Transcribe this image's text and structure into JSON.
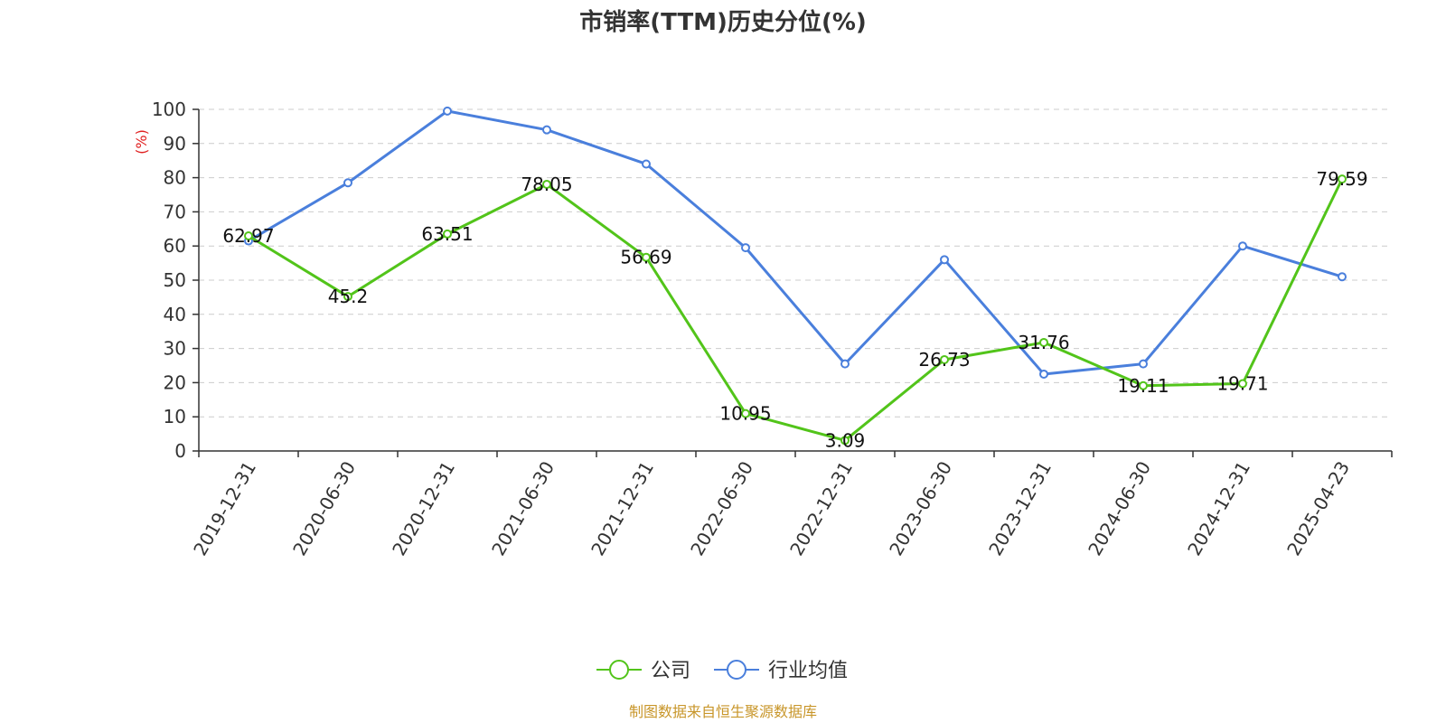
{
  "chart_data": {
    "type": "line",
    "title": "市销率(TTM)历史分位(%)",
    "ylabel": "(%)",
    "ylim": [
      0,
      100
    ],
    "yticks": [
      0,
      10,
      20,
      30,
      40,
      50,
      60,
      70,
      80,
      90,
      100
    ],
    "grid": "horizontal-dashed",
    "legend_position": "bottom-center",
    "categories": [
      "2019-12-31",
      "2020-06-30",
      "2020-12-31",
      "2021-06-30",
      "2021-12-31",
      "2022-06-30",
      "2022-12-31",
      "2023-06-30",
      "2023-12-31",
      "2024-06-30",
      "2024-12-31",
      "2025-04-23"
    ],
    "series": [
      {
        "name": "公司",
        "color": "#52c41a",
        "values": [
          62.97,
          45.2,
          63.51,
          78.05,
          56.69,
          10.95,
          3.09,
          26.73,
          31.76,
          19.11,
          19.71,
          79.59
        ],
        "labels": [
          "62.97",
          "45.2",
          "63.51",
          "78.05",
          "56.69",
          "10.95",
          "3.09",
          "26.73",
          "31.76",
          "19.11",
          "19.71",
          "79.59"
        ]
      },
      {
        "name": "行业均值",
        "color": "#4a7fdc",
        "values": [
          61.5,
          78.5,
          99.5,
          94,
          84,
          59.5,
          25.5,
          56,
          22.5,
          25.5,
          60,
          51
        ]
      }
    ],
    "source": "制图数据来自恒生聚源数据库",
    "colors": {
      "title": "#333333",
      "ylabel": "#e02020",
      "source": "#c8962a",
      "axis": "#333333",
      "grid": "#cccccc"
    }
  }
}
